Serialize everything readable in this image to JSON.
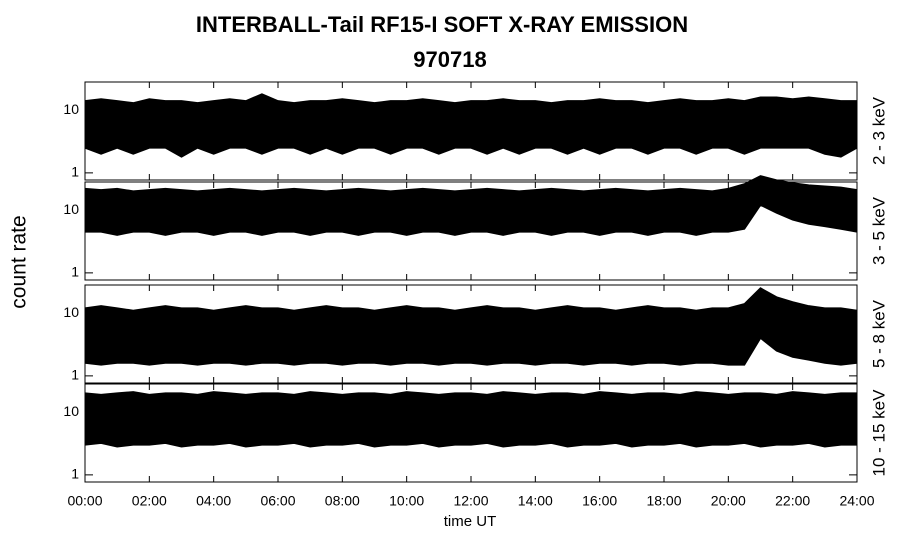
{
  "title": "INTERBALL-Tail RF15-I SOFT X-RAY EMISSION",
  "subtitle": "970718",
  "ylabel": "count rate",
  "xlabel": "time UT",
  "xlim": [
    0,
    24
  ],
  "xticks": [
    {
      "value": 0,
      "label": "00:00"
    },
    {
      "value": 2,
      "label": "02:00"
    },
    {
      "value": 4,
      "label": "04:00"
    },
    {
      "value": 6,
      "label": "06:00"
    },
    {
      "value": 8,
      "label": "08:00"
    },
    {
      "value": 10,
      "label": "10:00"
    },
    {
      "value": 12,
      "label": "12:00"
    },
    {
      "value": 14,
      "label": "14:00"
    },
    {
      "value": 16,
      "label": "16:00"
    },
    {
      "value": 18,
      "label": "18:00"
    },
    {
      "value": 20,
      "label": "20:00"
    },
    {
      "value": 22,
      "label": "22:00"
    },
    {
      "value": 24,
      "label": "24:00"
    }
  ],
  "x": [
    0,
    0.5,
    1,
    1.5,
    2,
    2.5,
    3,
    3.5,
    4,
    4.5,
    5,
    5.5,
    6,
    6.5,
    7,
    7.5,
    8,
    8.5,
    9,
    9.5,
    10,
    10.5,
    11,
    11.5,
    12,
    12.5,
    13,
    13.5,
    14,
    14.5,
    15,
    15.5,
    16,
    16.5,
    17,
    17.5,
    18,
    18.5,
    19,
    19.5,
    20,
    20.5,
    21,
    21.5,
    22,
    22.5,
    23,
    23.5,
    24
  ],
  "chart_data": [
    {
      "type": "band",
      "label": "2 - 3 keV",
      "log_y": true,
      "color": "#000000",
      "ylim": [
        0.77,
        28
      ],
      "yticks": [
        1,
        10
      ],
      "values": [
        14,
        15,
        14,
        13,
        15,
        14,
        14,
        13,
        14,
        15,
        14,
        18,
        14,
        13,
        14,
        14,
        15,
        14,
        13,
        14,
        14,
        15,
        14,
        13,
        14,
        14,
        15,
        14,
        14,
        13,
        14,
        14,
        15,
        14,
        14,
        13,
        14,
        15,
        14,
        14,
        15,
        14,
        16,
        16,
        15,
        16,
        15,
        14,
        14
      ],
      "lower": [
        2.5,
        2,
        2.5,
        2,
        2.5,
        2.5,
        1.8,
        2.5,
        2,
        2.5,
        2.5,
        2,
        2.5,
        2.5,
        2,
        2.5,
        2,
        2.5,
        2.5,
        2,
        2.5,
        2.5,
        2,
        2.5,
        2.5,
        2,
        2.5,
        2,
        2.5,
        2.5,
        2,
        2.5,
        2,
        2.5,
        2.5,
        2,
        2.5,
        2.5,
        2,
        2.5,
        2.5,
        2,
        2.5,
        2.5,
        2.5,
        2.5,
        2,
        1.8,
        2.5
      ]
    },
    {
      "type": "band",
      "label": "3 - 5 keV",
      "log_y": true,
      "color": "#000000",
      "ylim": [
        0.77,
        28
      ],
      "yticks": [
        1,
        10
      ],
      "values": [
        22,
        21,
        22,
        20,
        21,
        22,
        21,
        20,
        21,
        22,
        21,
        20,
        21,
        22,
        21,
        20,
        21,
        22,
        21,
        20,
        21,
        22,
        21,
        20,
        21,
        22,
        21,
        20,
        21,
        22,
        21,
        20,
        21,
        22,
        21,
        20,
        21,
        22,
        21,
        20,
        22,
        26,
        35,
        30,
        27,
        25,
        24,
        23,
        21
      ],
      "lower": [
        4.5,
        4.5,
        4,
        4.5,
        4.5,
        4,
        4.5,
        4.5,
        4,
        4.5,
        4.5,
        4,
        4.5,
        4.5,
        4,
        4.5,
        4.5,
        4,
        4.5,
        4.5,
        4,
        4.5,
        4.5,
        4,
        4.5,
        4.5,
        4,
        4.5,
        4.5,
        4,
        4.5,
        4.5,
        4,
        4.5,
        4.5,
        4,
        4.5,
        4.5,
        4,
        4.5,
        4.5,
        5,
        12,
        9,
        7,
        6,
        5.5,
        5,
        4.5
      ]
    },
    {
      "type": "band",
      "label": "5 - 8 keV",
      "log_y": true,
      "color": "#000000",
      "ylim": [
        0.77,
        28
      ],
      "yticks": [
        1,
        10
      ],
      "values": [
        12,
        13,
        12,
        11,
        12,
        13,
        12,
        12,
        11,
        12,
        13,
        12,
        12,
        11,
        12,
        13,
        12,
        12,
        11,
        12,
        13,
        12,
        12,
        11,
        12,
        13,
        12,
        12,
        11,
        12,
        13,
        12,
        12,
        11,
        12,
        13,
        12,
        12,
        11,
        12,
        12,
        14,
        25,
        18,
        15,
        13,
        12,
        12,
        11
      ],
      "lower": [
        1.6,
        1.5,
        1.6,
        1.6,
        1.5,
        1.6,
        1.6,
        1.5,
        1.6,
        1.6,
        1.5,
        1.6,
        1.6,
        1.5,
        1.6,
        1.6,
        1.5,
        1.6,
        1.6,
        1.5,
        1.6,
        1.6,
        1.5,
        1.6,
        1.6,
        1.5,
        1.6,
        1.6,
        1.5,
        1.6,
        1.6,
        1.5,
        1.6,
        1.6,
        1.5,
        1.6,
        1.6,
        1.5,
        1.6,
        1.6,
        1.5,
        1.5,
        4,
        2.5,
        2,
        1.8,
        1.6,
        1.5,
        1.6
      ]
    },
    {
      "type": "band",
      "label": "10 - 15 keV",
      "log_y": true,
      "color": "#000000",
      "ylim": [
        0.77,
        28
      ],
      "yticks": [
        1,
        10
      ],
      "values": [
        20,
        19,
        20,
        21,
        19,
        20,
        20,
        19,
        21,
        20,
        19,
        20,
        20,
        19,
        21,
        20,
        19,
        20,
        20,
        19,
        21,
        20,
        19,
        20,
        20,
        19,
        21,
        20,
        19,
        20,
        20,
        19,
        21,
        20,
        19,
        20,
        20,
        19,
        21,
        20,
        19,
        20,
        20,
        19,
        21,
        20,
        19,
        20,
        20
      ],
      "lower": [
        3,
        3.2,
        2.8,
        3,
        3,
        3.2,
        2.8,
        3,
        3,
        3.2,
        2.8,
        3,
        3,
        3.2,
        2.8,
        3,
        3,
        3.2,
        2.8,
        3,
        3,
        3.2,
        2.8,
        3,
        3,
        3.2,
        2.8,
        3,
        3,
        3.2,
        2.8,
        3,
        3,
        3.2,
        2.8,
        3,
        3,
        3.2,
        2.8,
        3,
        3,
        3.2,
        2.8,
        3,
        3,
        3.2,
        2.8,
        3,
        3
      ]
    }
  ]
}
